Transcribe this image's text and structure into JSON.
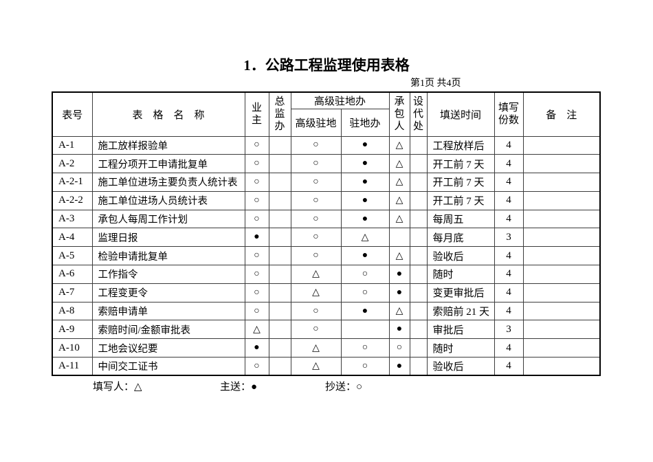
{
  "page": {
    "title": "1．公路工程监理使用表格",
    "page_info": "第1页 共4页"
  },
  "table": {
    "headers": {
      "form_no": "表号",
      "form_name": "表　格　名　称",
      "owner": "业主",
      "chief_office": "总监办",
      "senior_resident_group": "高级驻地办",
      "senior_resident": "高级驻地",
      "resident_office": "驻地办",
      "contractor": "承包人",
      "design_rep": "设代处",
      "submit_time": "填送时间",
      "copies": "填写份数",
      "remarks": "备　注"
    },
    "legend_symbols": {
      "filler": "△",
      "main_send": "●",
      "copy_send": "○"
    },
    "rows": [
      {
        "no": "A-1",
        "name": "施工放样报验单",
        "owner": "○",
        "chief": "",
        "senior": "○",
        "resident": "●",
        "contractor": "△",
        "design": "",
        "time": "工程放样后",
        "copies": "4",
        "remarks": ""
      },
      {
        "no": "A-2",
        "name": "工程分项开工申请批复单",
        "owner": "○",
        "chief": "",
        "senior": "○",
        "resident": "●",
        "contractor": "△",
        "design": "",
        "time": "开工前 7 天",
        "copies": "4",
        "remarks": ""
      },
      {
        "no": "A-2-1",
        "name": "施工单位进场主要负责人统计表",
        "owner": "○",
        "chief": "",
        "senior": "○",
        "resident": "●",
        "contractor": "△",
        "design": "",
        "time": "开工前 7 天",
        "copies": "4",
        "remarks": ""
      },
      {
        "no": "A-2-2",
        "name": "施工单位进场人员统计表",
        "owner": "○",
        "chief": "",
        "senior": "○",
        "resident": "●",
        "contractor": "△",
        "design": "",
        "time": "开工前 7 天",
        "copies": "4",
        "remarks": ""
      },
      {
        "no": "A-3",
        "name": "承包人每周工作计划",
        "owner": "○",
        "chief": "",
        "senior": "○",
        "resident": "●",
        "contractor": "△",
        "design": "",
        "time": "每周五",
        "copies": "4",
        "remarks": ""
      },
      {
        "no": "A-4",
        "name": "监理日报",
        "owner": "●",
        "chief": "",
        "senior": "○",
        "resident": "△",
        "contractor": "",
        "design": "",
        "time": "每月底",
        "copies": "3",
        "remarks": ""
      },
      {
        "no": "A-5",
        "name": "检验申请批复单",
        "owner": "○",
        "chief": "",
        "senior": "○",
        "resident": "●",
        "contractor": "△",
        "design": "",
        "time": "验收后",
        "copies": "4",
        "remarks": ""
      },
      {
        "no": "A-6",
        "name": "工作指令",
        "owner": "○",
        "chief": "",
        "senior": "△",
        "resident": "○",
        "contractor": "●",
        "design": "",
        "time": "随时",
        "copies": "4",
        "remarks": ""
      },
      {
        "no": "A-7",
        "name": "工程变更令",
        "owner": "○",
        "chief": "",
        "senior": "△",
        "resident": "○",
        "contractor": "●",
        "design": "",
        "time": "变更审批后",
        "copies": "4",
        "remarks": ""
      },
      {
        "no": "A-8",
        "name": "索赔申请单",
        "owner": "○",
        "chief": "",
        "senior": "○",
        "resident": "●",
        "contractor": "△",
        "design": "",
        "time": "索赔前 21 天",
        "copies": "4",
        "remarks": ""
      },
      {
        "no": "A-9",
        "name": "索赔时间/金额审批表",
        "owner": "△",
        "chief": "",
        "senior": "○",
        "resident": "",
        "contractor": "●",
        "design": "",
        "time": "审批后",
        "copies": "3",
        "remarks": ""
      },
      {
        "no": "A-10",
        "name": "工地会议纪要",
        "owner": "●",
        "chief": "",
        "senior": "△",
        "resident": "○",
        "contractor": "○",
        "design": "",
        "time": "随时",
        "copies": "4",
        "remarks": ""
      },
      {
        "no": "A-11",
        "name": "中间交工证书",
        "owner": "○",
        "chief": "",
        "senior": "△",
        "resident": "○",
        "contractor": "●",
        "design": "",
        "time": "验收后",
        "copies": "4",
        "remarks": ""
      }
    ]
  },
  "footer": {
    "filler": "填写人：△",
    "main_send": "主送：●",
    "copy_send": "抄送：○"
  }
}
